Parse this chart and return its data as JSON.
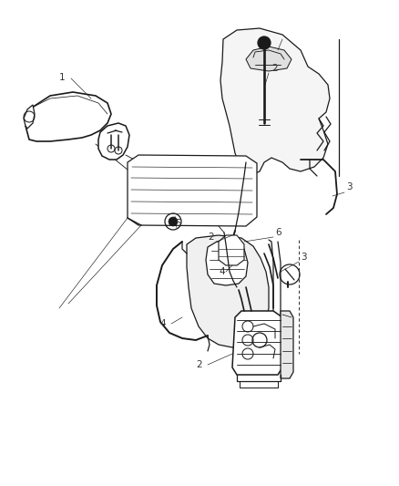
{
  "background_color": "#ffffff",
  "line_color": "#1a1a1a",
  "label_color": "#333333",
  "label_fontsize": 7.5,
  "fig_width": 4.38,
  "fig_height": 5.33,
  "dpi": 100
}
